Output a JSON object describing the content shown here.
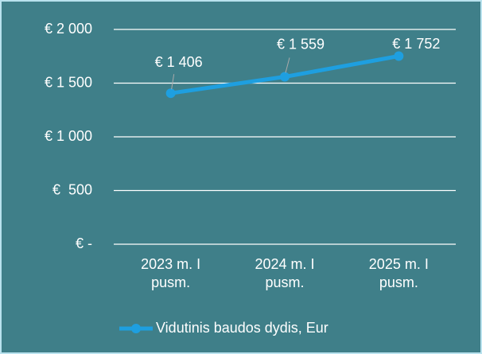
{
  "chart_data": {
    "type": "line",
    "categories": [
      "2023 m. I pusm.",
      "2024 m. I pusm.",
      "2025 m. I pusm."
    ],
    "series": [
      {
        "name": "Vidutinis baudos dydis, Eur",
        "color": "#1e9fe0",
        "values": [
          1406,
          1559,
          1752
        ],
        "value_labels": [
          "€ 1 406",
          "€ 1 559",
          "€ 1 752"
        ]
      }
    ],
    "ylim": [
      0,
      2000
    ],
    "yticks": [
      {
        "value": 0,
        "label": "€ -"
      },
      {
        "value": 500,
        "label": "€  500"
      },
      {
        "value": 1000,
        "label": "€ 1 000"
      },
      {
        "value": 1500,
        "label": "€ 1 500"
      },
      {
        "value": 2000,
        "label": "€ 2 000"
      }
    ],
    "grid": true,
    "legend": "bottom"
  }
}
